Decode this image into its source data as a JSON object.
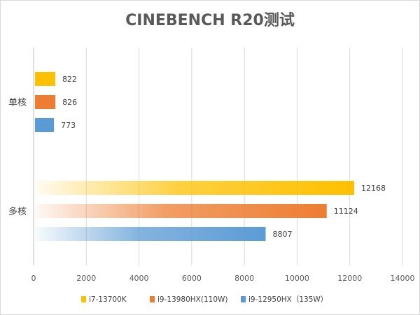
{
  "chart_data": {
    "type": "bar",
    "orientation": "horizontal",
    "title": "CINEBENCH R20测试",
    "categories": [
      "单核",
      "多核"
    ],
    "series": [
      {
        "name": "i7-13700K",
        "values": [
          822,
          12168
        ],
        "color": "#FFC000"
      },
      {
        "name": "i9-13980HX(110W)",
        "values": [
          826,
          11124
        ],
        "color": "#ED7D31"
      },
      {
        "name": "i9-12950HX（135W）",
        "values": [
          773,
          8807
        ],
        "color": "#5B9BD5"
      }
    ],
    "xlim": [
      0,
      14000
    ],
    "xticks": [
      "0",
      "2000",
      "4000",
      "6000",
      "8000",
      "10000",
      "12000",
      "14000"
    ],
    "grid": true,
    "data_labels": true,
    "legend_position": "bottom"
  }
}
